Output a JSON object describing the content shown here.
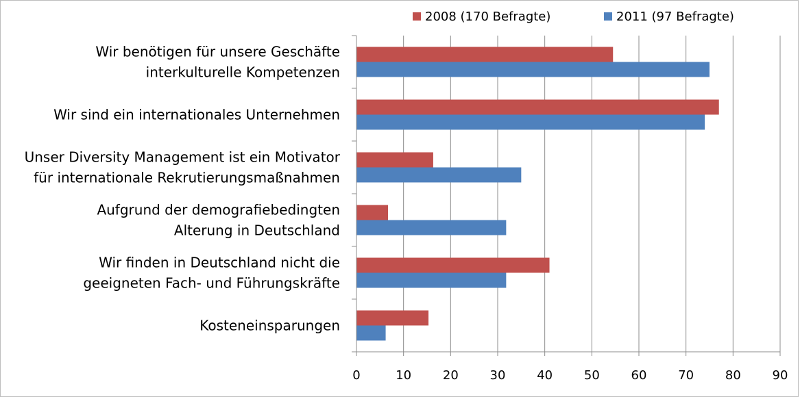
{
  "chart_data": {
    "type": "bar",
    "orientation": "horizontal",
    "categories": [
      [
        "Wir benötigen für unsere Geschäfte",
        "interkulturelle Kompetenzen"
      ],
      [
        "Wir sind ein internationales Unternehmen"
      ],
      [
        "Unser Diversity Management ist ein Motivator",
        "für internationale Rekrutierungsmaßnahmen"
      ],
      [
        "Aufgrund der demografiebedingten",
        "Alterung in Deutschland"
      ],
      [
        "Wir finden in Deutschland nicht die",
        "geeigneten Fach- und Führungskräfte"
      ],
      [
        "Kosteneinsparungen"
      ]
    ],
    "series": [
      {
        "name": "2008 (170 Befragte)",
        "color": "#c0504d",
        "values": [
          54.5,
          77,
          16.3,
          6.7,
          41,
          15.3
        ]
      },
      {
        "name": "2011 (97 Befragte)",
        "color": "#4f81bd",
        "values": [
          75,
          74,
          35,
          31.8,
          31.8,
          6.2
        ]
      }
    ],
    "xlim": [
      0,
      90
    ],
    "xticks": [
      "0",
      "10",
      "20",
      "30",
      "40",
      "50",
      "60",
      "70",
      "80",
      "90"
    ],
    "grid": "vertical",
    "legend": "top"
  }
}
